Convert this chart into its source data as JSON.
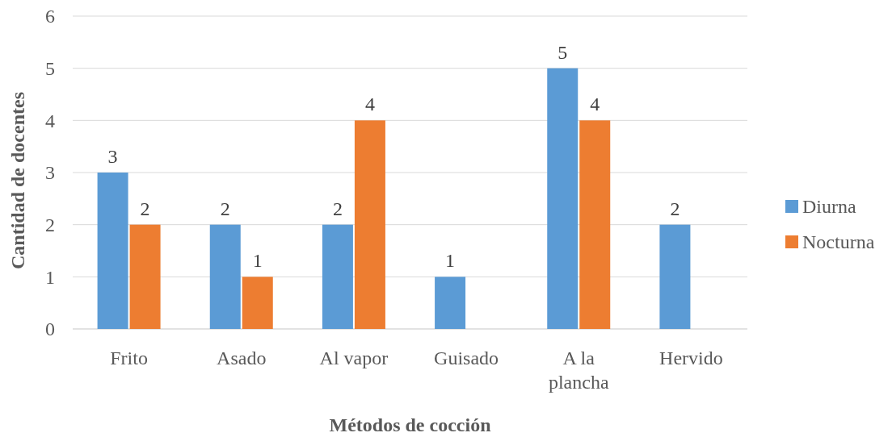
{
  "chart_data": {
    "type": "bar",
    "xlabel": "Métodos de cocción",
    "ylabel": "Cantidad de docentes",
    "categories": [
      "Frito",
      "Asado",
      "Al vapor",
      "Guisado",
      "A la plancha",
      "Hervido"
    ],
    "series": [
      {
        "name": "Diurna",
        "color": "#5b9bd5",
        "values": [
          3,
          2,
          2,
          1,
          5,
          2
        ]
      },
      {
        "name": "Nocturna",
        "color": "#ed7d31",
        "values": [
          2,
          1,
          4,
          null,
          4,
          null
        ]
      }
    ],
    "ylim": [
      0,
      6
    ],
    "yticks": [
      0,
      1,
      2,
      3,
      4,
      5,
      6
    ],
    "grid": "y",
    "legend": "right",
    "data_labels": true
  }
}
